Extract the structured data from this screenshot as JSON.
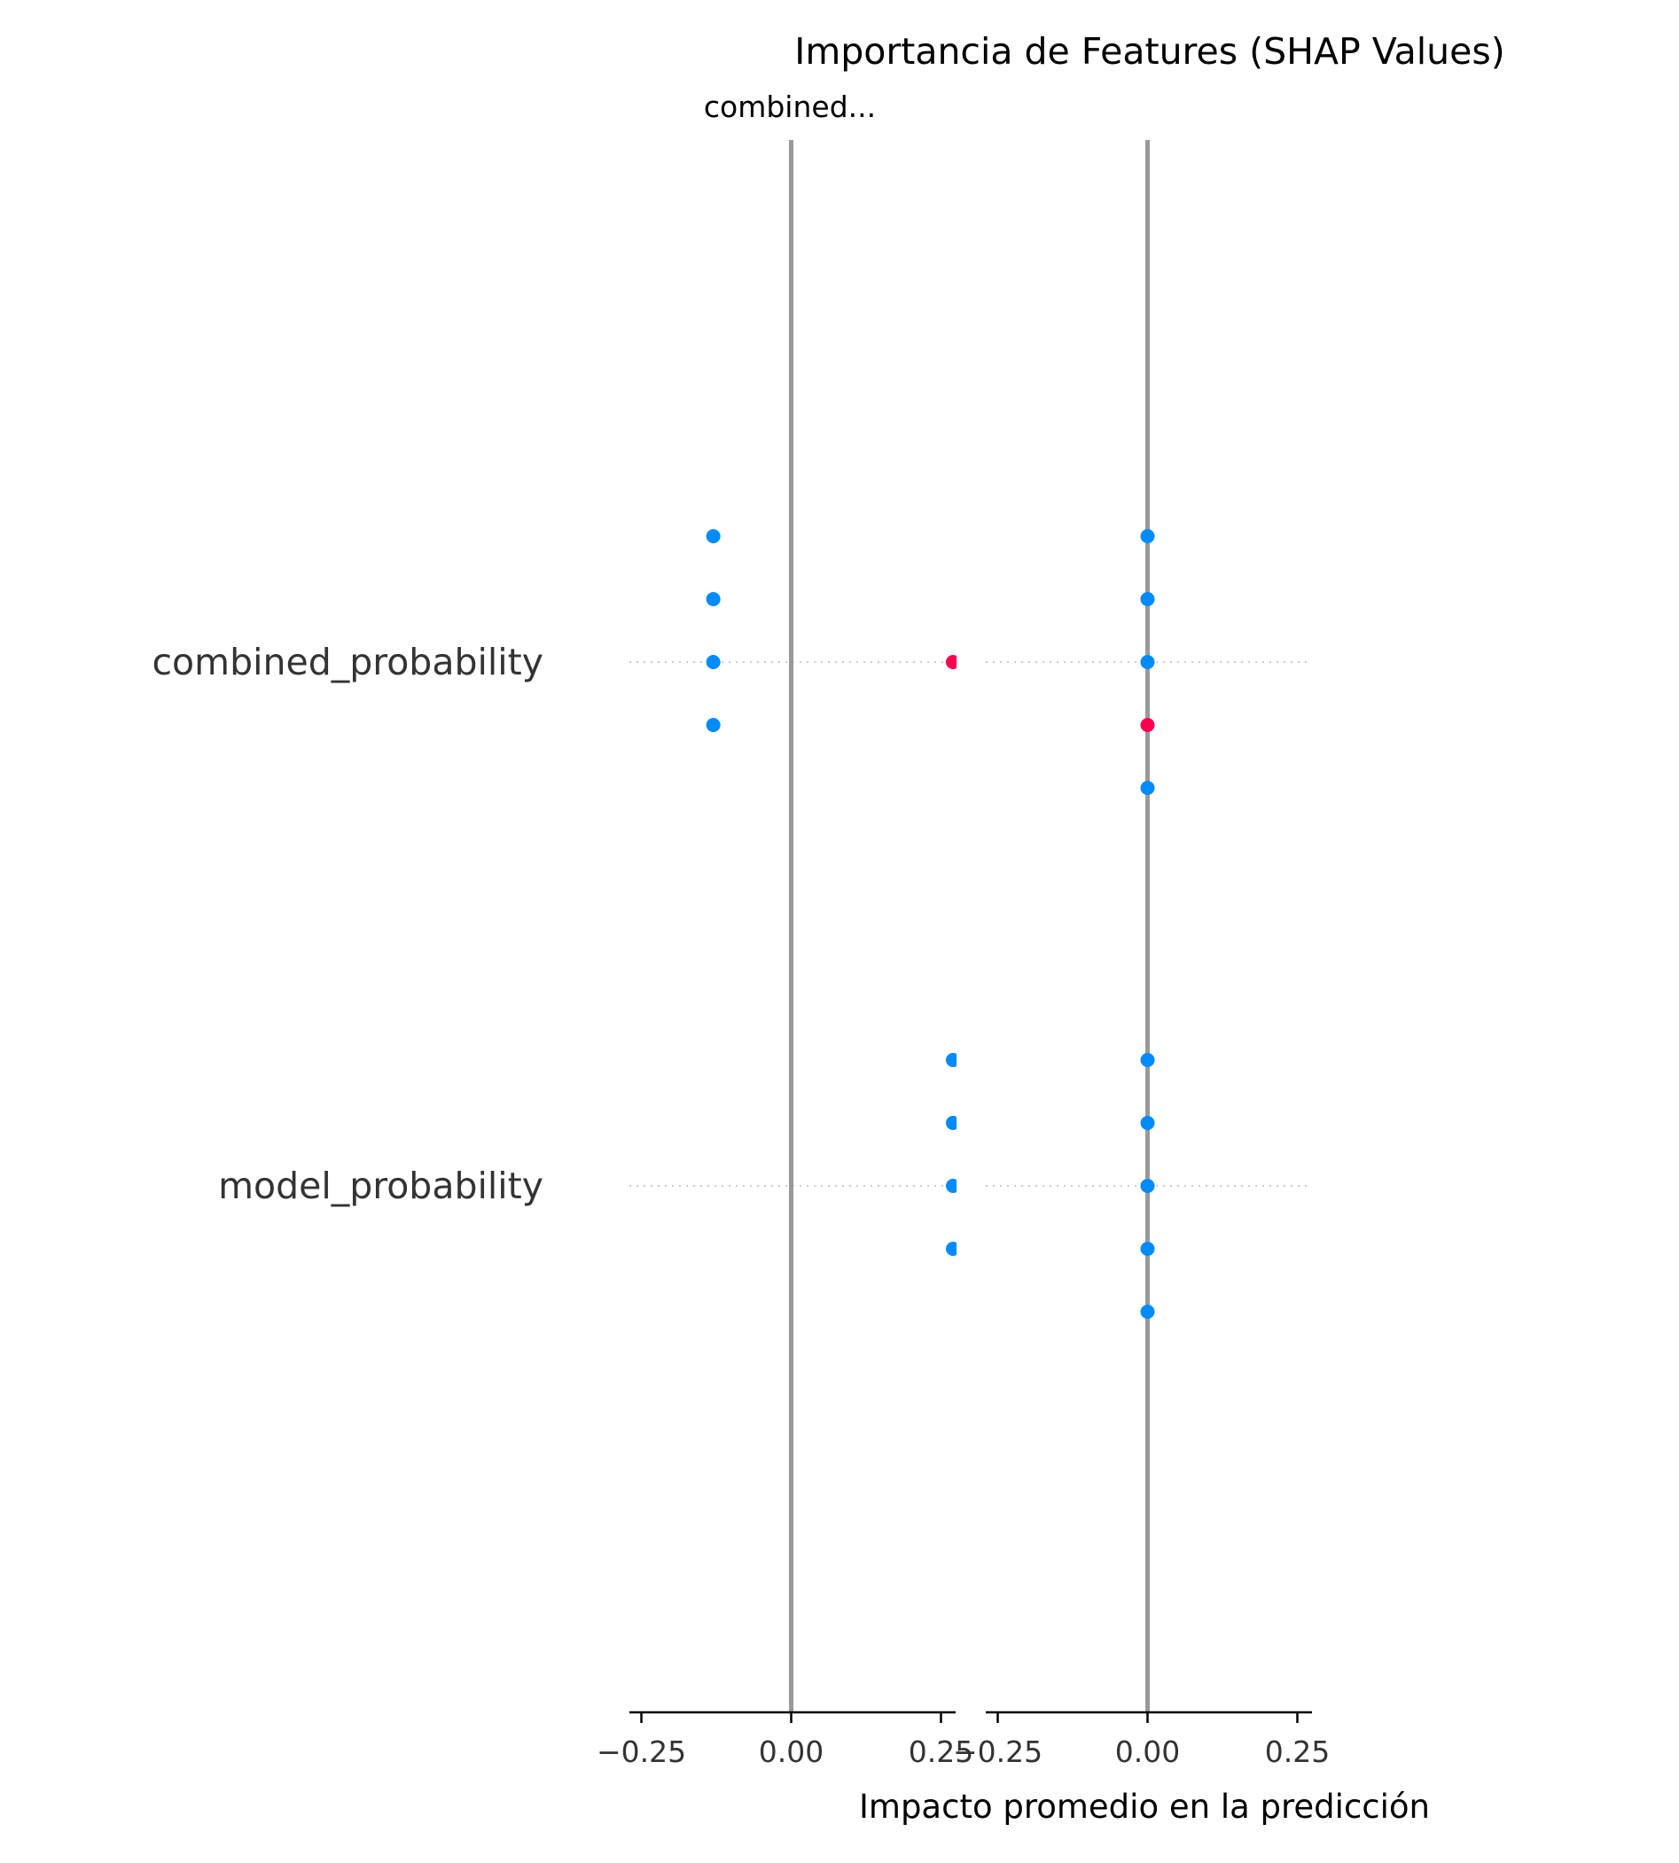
{
  "chart_data": {
    "type": "scatter",
    "title": "Importancia de Features (SHAP Values)",
    "subtitle": "combined...",
    "xlabel": "Impacto promedio en la predicción",
    "features": [
      "combined_probability",
      "model_probability"
    ],
    "colors": {
      "low": "#008bfb",
      "high": "#ff0051",
      "zero_line": "#999999",
      "row_guide": "#cccccc",
      "axis": "#000000"
    },
    "panels": [
      {
        "xlim": [
          -0.27,
          0.27
        ],
        "ticks": [
          -0.25,
          0.0,
          0.25
        ],
        "tick_labels": [
          "−0.25",
          "0.00",
          "0.25"
        ],
        "points": [
          {
            "feature": "combined_probability",
            "x": -0.13,
            "offset": -2,
            "level": "low"
          },
          {
            "feature": "combined_probability",
            "x": -0.13,
            "offset": -1,
            "level": "low"
          },
          {
            "feature": "combined_probability",
            "x": -0.13,
            "offset": 0,
            "level": "low"
          },
          {
            "feature": "combined_probability",
            "x": -0.13,
            "offset": 1,
            "level": "low"
          },
          {
            "feature": "combined_probability",
            "x": 0.27,
            "offset": 0,
            "level": "high"
          },
          {
            "feature": "model_probability",
            "x": 0.27,
            "offset": -2,
            "level": "low"
          },
          {
            "feature": "model_probability",
            "x": 0.27,
            "offset": -1,
            "level": "low"
          },
          {
            "feature": "model_probability",
            "x": 0.27,
            "offset": 0,
            "level": "low"
          },
          {
            "feature": "model_probability",
            "x": 0.27,
            "offset": 1,
            "level": "low"
          }
        ]
      },
      {
        "xlim": [
          -0.27,
          0.27
        ],
        "ticks": [
          -0.25,
          0.0,
          0.25
        ],
        "tick_labels": [
          "−0.25",
          "0.00",
          "0.25"
        ],
        "points": [
          {
            "feature": "combined_probability",
            "x": 0.0,
            "offset": -2,
            "level": "low"
          },
          {
            "feature": "combined_probability",
            "x": 0.0,
            "offset": -1,
            "level": "low"
          },
          {
            "feature": "combined_probability",
            "x": 0.0,
            "offset": 0,
            "level": "low"
          },
          {
            "feature": "combined_probability",
            "x": 0.0,
            "offset": 1,
            "level": "high"
          },
          {
            "feature": "combined_probability",
            "x": 0.0,
            "offset": 2,
            "level": "low"
          },
          {
            "feature": "model_probability",
            "x": 0.0,
            "offset": -2,
            "level": "low"
          },
          {
            "feature": "model_probability",
            "x": 0.0,
            "offset": -1,
            "level": "low"
          },
          {
            "feature": "model_probability",
            "x": 0.0,
            "offset": 0,
            "level": "low"
          },
          {
            "feature": "model_probability",
            "x": 0.0,
            "offset": 1,
            "level": "low"
          },
          {
            "feature": "model_probability",
            "x": 0.0,
            "offset": 2,
            "level": "low"
          }
        ]
      }
    ]
  }
}
